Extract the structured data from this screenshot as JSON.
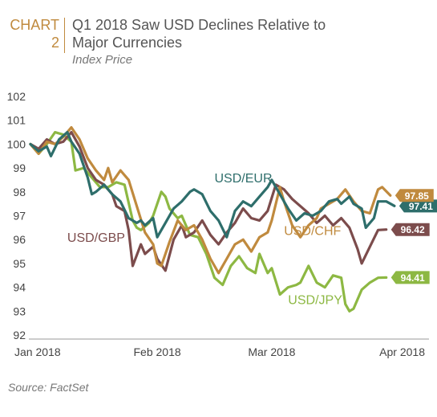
{
  "header": {
    "chart_word": "CHART",
    "chart_number": "2",
    "title_line1": "Q1 2018 Saw USD Declines Relative to",
    "title_line2": "Major Currencies",
    "subtitle": "Index Price"
  },
  "source": "Source: FactSet",
  "chart_data": {
    "type": "line",
    "title": "Q1 2018 Saw USD Declines Relative to Major Currencies",
    "ylabel": "Index Price",
    "ylim": [
      92,
      102
    ],
    "yticks": [
      92,
      93,
      94,
      95,
      96,
      97,
      98,
      99,
      100,
      101,
      102
    ],
    "xlim": [
      0,
      90
    ],
    "xticks": [
      {
        "label": "Jan 2018",
        "x": 0
      },
      {
        "label": "Feb 2018",
        "x": 31
      },
      {
        "label": "Mar 2018",
        "x": 59
      },
      {
        "label": "Apr 2018",
        "x": 90
      }
    ],
    "grid": false,
    "series": [
      {
        "name": "USD/EUR",
        "color": "#2e6e6b",
        "end_value": "97.41",
        "points": [
          [
            0,
            100
          ],
          [
            2,
            99.7
          ],
          [
            4,
            99.9
          ],
          [
            5,
            99.5
          ],
          [
            7,
            100.2
          ],
          [
            9,
            100.5
          ],
          [
            10,
            100.1
          ],
          [
            12,
            99.6
          ],
          [
            14,
            98.6
          ],
          [
            15,
            97.9
          ],
          [
            16,
            98.0
          ],
          [
            18,
            98.3
          ],
          [
            19,
            98.1
          ],
          [
            20,
            97.9
          ],
          [
            22,
            97.6
          ],
          [
            24,
            96.9
          ],
          [
            26,
            96.7
          ],
          [
            27,
            96.8
          ],
          [
            28,
            96.6
          ],
          [
            30,
            96.9
          ],
          [
            31,
            96.1
          ],
          [
            33,
            96.7
          ],
          [
            35,
            97.3
          ],
          [
            37,
            97.6
          ],
          [
            39,
            98.0
          ],
          [
            40,
            98.1
          ],
          [
            42,
            97.9
          ],
          [
            44,
            97.2
          ],
          [
            46,
            96.8
          ],
          [
            48,
            96.1
          ],
          [
            50,
            97.2
          ],
          [
            52,
            97.6
          ],
          [
            54,
            97.4
          ],
          [
            56,
            97.8
          ],
          [
            58,
            98.2
          ],
          [
            59,
            98.5
          ],
          [
            61,
            97.9
          ],
          [
            63,
            97.3
          ],
          [
            65,
            96.8
          ],
          [
            67,
            97.1
          ],
          [
            69,
            97.0
          ],
          [
            71,
            97.2
          ],
          [
            73,
            97.6
          ],
          [
            75,
            97.7
          ],
          [
            76,
            97.5
          ],
          [
            78,
            97.8
          ],
          [
            79,
            97.5
          ],
          [
            81,
            97.3
          ],
          [
            82,
            96.5
          ],
          [
            84,
            96.9
          ],
          [
            85,
            97.6
          ],
          [
            87,
            97.6
          ],
          [
            89,
            97.41
          ]
        ],
        "label": "USD/EUR",
        "label_pos": {
          "x": 45,
          "y": 98.4
        }
      },
      {
        "name": "USD/CHF",
        "color": "#c08a3e",
        "end_value": "97.85",
        "points": [
          [
            0,
            100
          ],
          [
            2,
            99.6
          ],
          [
            4,
            100.1
          ],
          [
            6,
            100.0
          ],
          [
            8,
            100.3
          ],
          [
            10,
            100.7
          ],
          [
            12,
            100.2
          ],
          [
            14,
            99.4
          ],
          [
            16,
            98.9
          ],
          [
            18,
            98.5
          ],
          [
            19,
            99.0
          ],
          [
            20,
            98.4
          ],
          [
            22,
            98.9
          ],
          [
            24,
            98.5
          ],
          [
            26,
            97.4
          ],
          [
            28,
            96.3
          ],
          [
            30,
            95.8
          ],
          [
            31,
            95.0
          ],
          [
            32,
            94.9
          ],
          [
            34,
            95.9
          ],
          [
            36,
            96.8
          ],
          [
            38,
            96.4
          ],
          [
            40,
            96.6
          ],
          [
            42,
            96.0
          ],
          [
            44,
            95.2
          ],
          [
            46,
            94.6
          ],
          [
            48,
            95.2
          ],
          [
            50,
            95.8
          ],
          [
            52,
            96.0
          ],
          [
            54,
            95.5
          ],
          [
            56,
            96.1
          ],
          [
            58,
            96.3
          ],
          [
            59,
            96.8
          ],
          [
            61,
            98.2
          ],
          [
            62,
            97.6
          ],
          [
            64,
            96.6
          ],
          [
            66,
            96.1
          ],
          [
            68,
            96.6
          ],
          [
            70,
            96.9
          ],
          [
            71,
            97.3
          ],
          [
            73,
            97.5
          ],
          [
            75,
            97.7
          ],
          [
            77,
            98.1
          ],
          [
            79,
            97.6
          ],
          [
            81,
            97.2
          ],
          [
            83,
            97.1
          ],
          [
            85,
            98.1
          ],
          [
            86,
            98.2
          ],
          [
            88,
            97.85
          ]
        ],
        "label": "USD/CHF",
        "label_pos": {
          "x": 62,
          "y": 96.2
        }
      },
      {
        "name": "USD/GBP",
        "color": "#7c4c4c",
        "end_value": "96.42",
        "points": [
          [
            0,
            100
          ],
          [
            2,
            99.8
          ],
          [
            4,
            100.2
          ],
          [
            6,
            100.0
          ],
          [
            8,
            100.1
          ],
          [
            10,
            100.5
          ],
          [
            12,
            99.9
          ],
          [
            14,
            99.0
          ],
          [
            16,
            98.5
          ],
          [
            18,
            98.3
          ],
          [
            20,
            97.9
          ],
          [
            21,
            97.4
          ],
          [
            23,
            97.2
          ],
          [
            24,
            96.4
          ],
          [
            25,
            94.9
          ],
          [
            27,
            95.8
          ],
          [
            28,
            95.4
          ],
          [
            30,
            95.7
          ],
          [
            31,
            95.2
          ],
          [
            33,
            94.7
          ],
          [
            35,
            96.0
          ],
          [
            37,
            96.6
          ],
          [
            38,
            96.1
          ],
          [
            40,
            96.3
          ],
          [
            42,
            96.8
          ],
          [
            44,
            96.2
          ],
          [
            46,
            95.8
          ],
          [
            48,
            96.3
          ],
          [
            50,
            96.7
          ],
          [
            52,
            97.3
          ],
          [
            54,
            96.9
          ],
          [
            56,
            96.8
          ],
          [
            58,
            97.2
          ],
          [
            60,
            98.3
          ],
          [
            62,
            98.1
          ],
          [
            64,
            97.7
          ],
          [
            66,
            97.4
          ],
          [
            68,
            97.1
          ],
          [
            70,
            96.7
          ],
          [
            72,
            97.0
          ],
          [
            74,
            96.6
          ],
          [
            76,
            96.9
          ],
          [
            78,
            96.5
          ],
          [
            80,
            95.6
          ],
          [
            81,
            95.0
          ],
          [
            83,
            95.7
          ],
          [
            85,
            96.4
          ],
          [
            87,
            96.42
          ]
        ],
        "label": "USD/GBP",
        "label_pos": {
          "x": 9,
          "y": 95.9
        }
      },
      {
        "name": "USD/JPY",
        "color": "#8db843",
        "end_value": "94.41",
        "points": [
          [
            0,
            100
          ],
          [
            2,
            99.6
          ],
          [
            4,
            100.0
          ],
          [
            6,
            100.5
          ],
          [
            8,
            100.4
          ],
          [
            10,
            100.1
          ],
          [
            11,
            98.9
          ],
          [
            13,
            99.0
          ],
          [
            15,
            98.6
          ],
          [
            17,
            98.2
          ],
          [
            19,
            98.2
          ],
          [
            21,
            98.4
          ],
          [
            23,
            98.3
          ],
          [
            25,
            96.8
          ],
          [
            26,
            96.5
          ],
          [
            27,
            96.4
          ],
          [
            29,
            96.7
          ],
          [
            30,
            97.0
          ],
          [
            32,
            98.0
          ],
          [
            33,
            97.8
          ],
          [
            34,
            97.3
          ],
          [
            36,
            96.9
          ],
          [
            37,
            97.0
          ],
          [
            39,
            96.2
          ],
          [
            41,
            96.1
          ],
          [
            43,
            95.4
          ],
          [
            45,
            94.4
          ],
          [
            47,
            94.1
          ],
          [
            49,
            94.9
          ],
          [
            51,
            95.3
          ],
          [
            53,
            94.8
          ],
          [
            55,
            94.6
          ],
          [
            56,
            95.4
          ],
          [
            58,
            94.6
          ],
          [
            59,
            94.8
          ],
          [
            61,
            93.7
          ],
          [
            63,
            94.0
          ],
          [
            65,
            94.1
          ],
          [
            66,
            94.2
          ],
          [
            68,
            94.9
          ],
          [
            70,
            94.2
          ],
          [
            72,
            94.0
          ],
          [
            74,
            94.5
          ],
          [
            76,
            94.4
          ],
          [
            77,
            93.3
          ],
          [
            78,
            93.0
          ],
          [
            79,
            93.1
          ],
          [
            81,
            93.9
          ],
          [
            83,
            94.2
          ],
          [
            85,
            94.4
          ],
          [
            87,
            94.41
          ]
        ],
        "label": "USD/JPY",
        "label_pos": {
          "x": 63,
          "y": 93.3
        }
      }
    ]
  }
}
